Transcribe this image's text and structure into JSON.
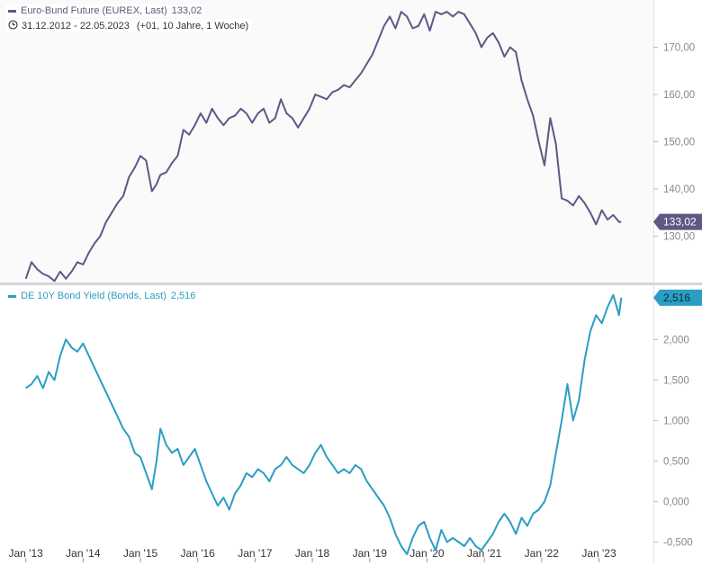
{
  "chart_data": [
    {
      "type": "line",
      "legend": {
        "name": "Euro-Bund Future (EUREX, Last)",
        "last_value": "133,02"
      },
      "range_info": {
        "dates": "31.12.2012 - 22.05.2023",
        "extra": "(+01, 10 Jahre, 1 Woche)"
      },
      "y_ticks": [
        "170,00",
        "160,00",
        "150,00",
        "140,00",
        "130,00"
      ],
      "y_tick_values": [
        170,
        160,
        150,
        140,
        130
      ],
      "ylim": [
        120,
        180
      ],
      "last_label": "133,02",
      "color": "#5e5885",
      "x": [
        2013.0,
        2013.1,
        2013.2,
        2013.3,
        2013.4,
        2013.5,
        2013.6,
        2013.7,
        2013.8,
        2013.9,
        2014.0,
        2014.1,
        2014.2,
        2014.3,
        2014.4,
        2014.5,
        2014.6,
        2014.7,
        2014.8,
        2014.9,
        2015.0,
        2015.1,
        2015.2,
        2015.28,
        2015.35,
        2015.45,
        2015.55,
        2015.65,
        2015.75,
        2015.85,
        2015.95,
        2016.05,
        2016.15,
        2016.25,
        2016.35,
        2016.45,
        2016.55,
        2016.65,
        2016.75,
        2016.85,
        2016.95,
        2017.05,
        2017.15,
        2017.25,
        2017.35,
        2017.45,
        2017.55,
        2017.65,
        2017.75,
        2017.85,
        2017.95,
        2018.05,
        2018.15,
        2018.25,
        2018.35,
        2018.45,
        2018.55,
        2018.65,
        2018.75,
        2018.85,
        2018.95,
        2019.05,
        2019.15,
        2019.25,
        2019.35,
        2019.45,
        2019.55,
        2019.65,
        2019.75,
        2019.85,
        2019.95,
        2020.05,
        2020.15,
        2020.25,
        2020.35,
        2020.45,
        2020.55,
        2020.65,
        2020.75,
        2020.85,
        2020.95,
        2021.05,
        2021.15,
        2021.25,
        2021.35,
        2021.45,
        2021.55,
        2021.65,
        2021.75,
        2021.85,
        2021.95,
        2022.05,
        2022.15,
        2022.25,
        2022.35,
        2022.45,
        2022.55,
        2022.65,
        2022.75,
        2022.85,
        2022.95,
        2023.05,
        2023.15,
        2023.25,
        2023.35,
        2023.39
      ],
      "values": [
        121.0,
        124.5,
        123.0,
        122.0,
        121.5,
        120.5,
        122.5,
        121.0,
        122.5,
        124.5,
        124.0,
        126.5,
        128.5,
        130.0,
        133.0,
        135.0,
        137.0,
        138.5,
        142.5,
        144.5,
        147.0,
        146.0,
        139.5,
        141.0,
        143.0,
        143.5,
        145.5,
        147.0,
        152.5,
        151.5,
        153.5,
        156.0,
        154.0,
        157.0,
        155.0,
        153.5,
        155.0,
        155.5,
        157.0,
        156.0,
        154.0,
        156.0,
        157.0,
        154.0,
        155.0,
        159.0,
        156.0,
        155.0,
        153.0,
        155.0,
        157.0,
        160.0,
        159.5,
        159.0,
        160.5,
        161.0,
        162.0,
        161.5,
        163.0,
        164.5,
        166.5,
        168.5,
        171.5,
        174.5,
        176.5,
        174.0,
        177.5,
        176.5,
        174.0,
        174.5,
        177.0,
        173.5,
        177.5,
        177.0,
        177.5,
        176.5,
        177.5,
        177.0,
        175.0,
        173.0,
        170.0,
        172.0,
        173.0,
        171.0,
        168.0,
        170.0,
        169.0,
        163.0,
        159.0,
        155.5,
        150.0,
        145.0,
        155.0,
        149.5,
        138.0,
        137.5,
        136.5,
        138.5,
        137.0,
        135.0,
        132.5,
        135.5,
        133.5,
        134.5,
        133.0,
        133.02
      ]
    },
    {
      "type": "line",
      "legend": {
        "name": "DE 10Y Bond Yield (Bonds, Last)",
        "last_value": "2,516"
      },
      "y_ticks": [
        "2,000",
        "1,500",
        "1,000",
        "0,500",
        "0,000",
        "-0,500"
      ],
      "y_tick_values": [
        2.0,
        1.5,
        1.0,
        0.5,
        0.0,
        -0.5
      ],
      "ylim": [
        -0.75,
        2.67
      ],
      "last_label": "2,516",
      "color": "#2a9ec3",
      "x": [
        2013.0,
        2013.1,
        2013.2,
        2013.3,
        2013.4,
        2013.5,
        2013.6,
        2013.7,
        2013.8,
        2013.9,
        2014.0,
        2014.1,
        2014.2,
        2014.3,
        2014.4,
        2014.5,
        2014.6,
        2014.7,
        2014.8,
        2014.9,
        2015.0,
        2015.1,
        2015.2,
        2015.28,
        2015.35,
        2015.45,
        2015.55,
        2015.65,
        2015.75,
        2015.85,
        2015.95,
        2016.05,
        2016.15,
        2016.25,
        2016.35,
        2016.45,
        2016.55,
        2016.65,
        2016.75,
        2016.85,
        2016.95,
        2017.05,
        2017.15,
        2017.25,
        2017.35,
        2017.45,
        2017.55,
        2017.65,
        2017.75,
        2017.85,
        2017.95,
        2018.05,
        2018.15,
        2018.25,
        2018.35,
        2018.45,
        2018.55,
        2018.65,
        2018.75,
        2018.85,
        2018.95,
        2019.05,
        2019.15,
        2019.25,
        2019.35,
        2019.45,
        2019.55,
        2019.65,
        2019.75,
        2019.85,
        2019.95,
        2020.05,
        2020.15,
        2020.25,
        2020.35,
        2020.45,
        2020.55,
        2020.65,
        2020.75,
        2020.85,
        2020.95,
        2021.05,
        2021.15,
        2021.25,
        2021.35,
        2021.45,
        2021.55,
        2021.65,
        2021.75,
        2021.85,
        2021.95,
        2022.05,
        2022.15,
        2022.25,
        2022.35,
        2022.45,
        2022.55,
        2022.65,
        2022.75,
        2022.85,
        2022.95,
        2023.05,
        2023.15,
        2023.25,
        2023.35,
        2023.39
      ],
      "values": [
        1.4,
        1.45,
        1.55,
        1.4,
        1.6,
        1.5,
        1.8,
        2.0,
        1.9,
        1.85,
        1.95,
        1.8,
        1.65,
        1.5,
        1.35,
        1.2,
        1.05,
        0.9,
        0.8,
        0.6,
        0.55,
        0.35,
        0.15,
        0.5,
        0.9,
        0.7,
        0.6,
        0.65,
        0.45,
        0.55,
        0.65,
        0.45,
        0.25,
        0.1,
        -0.05,
        0.05,
        -0.1,
        0.1,
        0.2,
        0.35,
        0.3,
        0.4,
        0.35,
        0.25,
        0.4,
        0.45,
        0.55,
        0.45,
        0.4,
        0.35,
        0.45,
        0.6,
        0.7,
        0.55,
        0.45,
        0.35,
        0.4,
        0.35,
        0.45,
        0.4,
        0.25,
        0.15,
        0.05,
        -0.05,
        -0.2,
        -0.4,
        -0.55,
        -0.65,
        -0.45,
        -0.3,
        -0.25,
        -0.45,
        -0.6,
        -0.35,
        -0.5,
        -0.45,
        -0.5,
        -0.55,
        -0.45,
        -0.55,
        -0.6,
        -0.5,
        -0.4,
        -0.25,
        -0.15,
        -0.25,
        -0.4,
        -0.2,
        -0.3,
        -0.15,
        -0.1,
        0.0,
        0.2,
        0.6,
        1.0,
        1.45,
        1.0,
        1.25,
        1.75,
        2.1,
        2.3,
        2.2,
        2.4,
        2.55,
        2.3,
        2.516
      ]
    }
  ],
  "x_axis": {
    "tick_labels": [
      "Jan '13",
      "Jan '14",
      "Jan '15",
      "Jan '16",
      "Jan '17",
      "Jan '18",
      "Jan '19",
      "Jan '20",
      "Jan '21",
      "Jan '22",
      "Jan '23"
    ],
    "tick_values": [
      2013,
      2014,
      2015,
      2016,
      2017,
      2018,
      2019,
      2020,
      2021,
      2022,
      2023
    ],
    "xlim": [
      2012.55,
      2023.95
    ]
  }
}
